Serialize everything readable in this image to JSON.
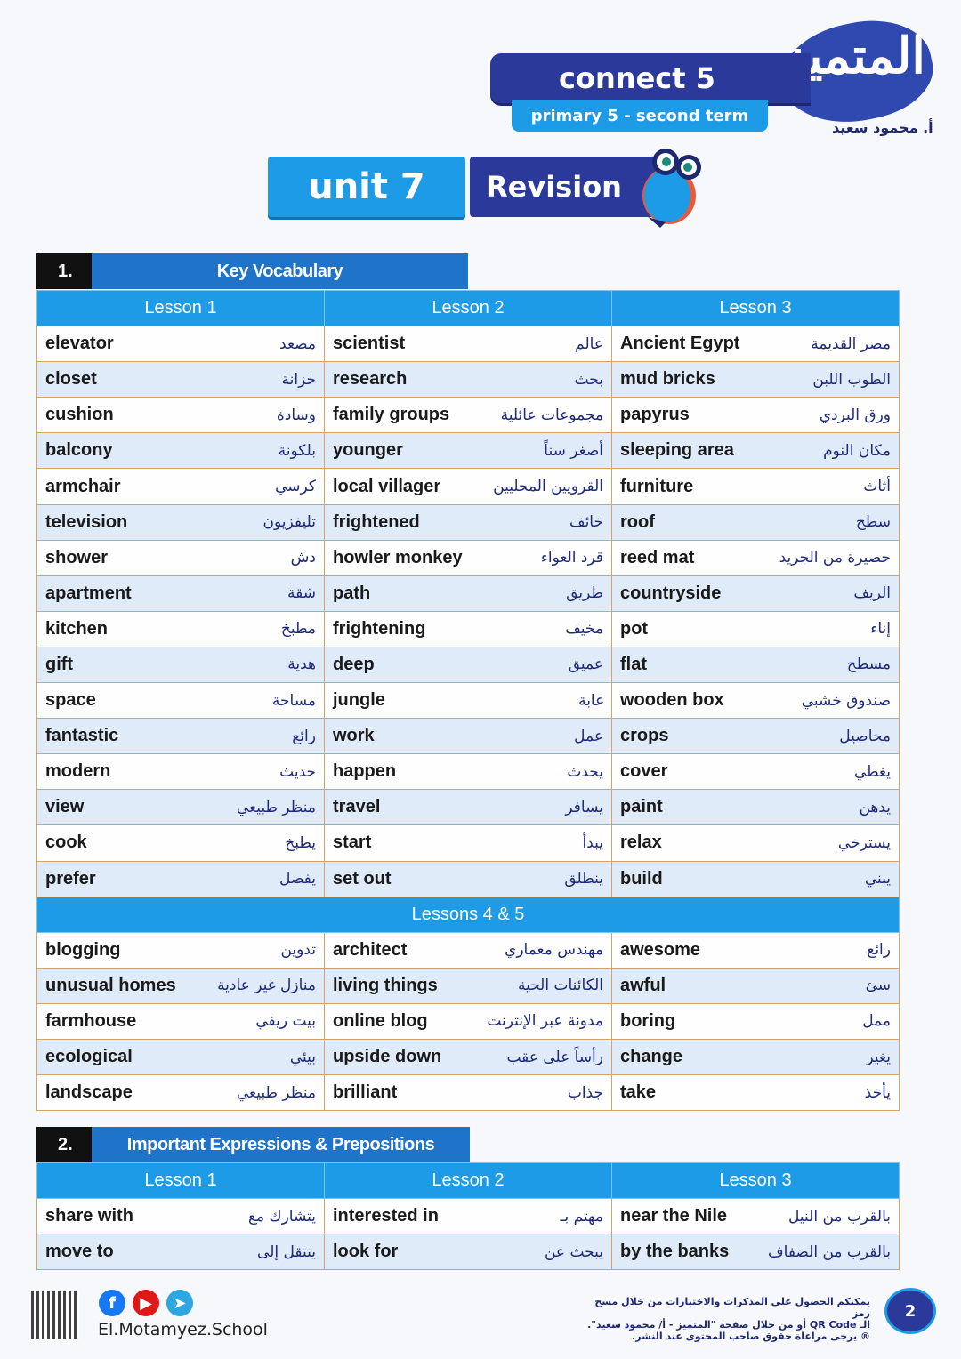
{
  "header": {
    "book": "connect 5",
    "level": "primary 5 - second term",
    "logo_text": "المتميز",
    "author": "أ. محمود سعيد",
    "unit": "unit 7",
    "title": "Revision"
  },
  "colors": {
    "navy": "#2b3a9a",
    "light_blue": "#1e9be6",
    "section_blue": "#1f73c9",
    "border": "#d4a466"
  },
  "section1": {
    "number": "1.",
    "title": "Key Vocabulary",
    "lessons": [
      "Lesson 1",
      "Lesson 2",
      "Lesson 3"
    ],
    "rows": [
      [
        [
          "elevator",
          "مصعد"
        ],
        [
          "scientist",
          "عالم"
        ],
        [
          "Ancient Egypt",
          "مصر القديمة"
        ]
      ],
      [
        [
          "closet",
          "خزانة"
        ],
        [
          "research",
          "بحث"
        ],
        [
          "mud bricks",
          "الطوب اللبن"
        ]
      ],
      [
        [
          "cushion",
          "وسادة"
        ],
        [
          "family groups",
          "مجموعات عائلية"
        ],
        [
          "papyrus",
          "ورق البردي"
        ]
      ],
      [
        [
          "balcony",
          "بلكونة"
        ],
        [
          "younger",
          "أصغر سناً"
        ],
        [
          "sleeping area",
          "مكان النوم"
        ]
      ],
      [
        [
          "armchair",
          "كرسي"
        ],
        [
          "local villager",
          "القرويين المحليين"
        ],
        [
          "furniture",
          "أثاث"
        ]
      ],
      [
        [
          "television",
          "تليفزيون"
        ],
        [
          "frightened",
          "خائف"
        ],
        [
          "roof",
          "سطح"
        ]
      ],
      [
        [
          "shower",
          "دش"
        ],
        [
          "howler monkey",
          "قرد العواء"
        ],
        [
          "reed mat",
          "حصيرة من الجريد"
        ]
      ],
      [
        [
          "apartment",
          "شقة"
        ],
        [
          "path",
          "طريق"
        ],
        [
          "countryside",
          "الريف"
        ]
      ],
      [
        [
          "kitchen",
          "مطبخ"
        ],
        [
          "frightening",
          "مخيف"
        ],
        [
          "pot",
          "إناء"
        ]
      ],
      [
        [
          "gift",
          "هدية"
        ],
        [
          "deep",
          "عميق"
        ],
        [
          "flat",
          "مسطح"
        ]
      ],
      [
        [
          "space",
          "مساحة"
        ],
        [
          "jungle",
          "غابة"
        ],
        [
          "wooden box",
          "صندوق خشبي"
        ]
      ],
      [
        [
          "fantastic",
          "رائع"
        ],
        [
          "work",
          "عمل"
        ],
        [
          "crops",
          "محاصيل"
        ]
      ],
      [
        [
          "modern",
          "حديث"
        ],
        [
          "happen",
          "يحدث"
        ],
        [
          "cover",
          "يغطي"
        ]
      ],
      [
        [
          "view",
          "منظر طبيعي"
        ],
        [
          "travel",
          "يسافر"
        ],
        [
          "paint",
          "يدهن"
        ]
      ],
      [
        [
          "cook",
          "يطبخ"
        ],
        [
          "start",
          "يبدأ"
        ],
        [
          "relax",
          "يسترخي"
        ]
      ],
      [
        [
          "prefer",
          "يفضل"
        ],
        [
          "set out",
          "ينطلق"
        ],
        [
          "build",
          "يبني"
        ]
      ]
    ],
    "lessons45": "Lessons 4 & 5",
    "rows45": [
      [
        [
          "blogging",
          "تدوين"
        ],
        [
          "architect",
          "مهندس معماري"
        ],
        [
          "awesome",
          "رائع"
        ]
      ],
      [
        [
          "unusual homes",
          "منازل غير عادية"
        ],
        [
          "living things",
          "الكائنات الحية"
        ],
        [
          "awful",
          "سئ"
        ]
      ],
      [
        [
          "farmhouse",
          "بيت ريفي"
        ],
        [
          "online blog",
          "مدونة عبر الإنترنت"
        ],
        [
          "boring",
          "ممل"
        ]
      ],
      [
        [
          "ecological",
          "بيئي"
        ],
        [
          "upside down",
          "رأساً على عقب"
        ],
        [
          "change",
          "يغير"
        ]
      ],
      [
        [
          "landscape",
          "منظر طبيعي"
        ],
        [
          "brilliant",
          "جذاب"
        ],
        [
          "take",
          "يأخذ"
        ]
      ]
    ]
  },
  "section2": {
    "number": "2.",
    "title": "Important Expressions & Prepositions",
    "lessons": [
      "Lesson 1",
      "Lesson 2",
      "Lesson 3"
    ],
    "rows": [
      [
        [
          "share with",
          "يتشارك مع"
        ],
        [
          "interested in",
          "مهتم بـ"
        ],
        [
          "near the Nile",
          "بالقرب من النيل"
        ]
      ],
      [
        [
          "move to",
          "ينتقل إلى"
        ],
        [
          "look for",
          "يبحث عن"
        ],
        [
          "by the banks",
          "بالقرب من الضفاف"
        ]
      ]
    ]
  },
  "footer": {
    "notice_lines": [
      "يمكنكم الحصول على المذكرات والاختبارات من خلال مسح رمز",
      "الـ QR Code أو من خلال صفحة \"المتميز - أ/ محمود سعيد\".",
      "® يرجى مراعاة حقوق صاحب المحتوى عند النشر."
    ],
    "handle": "El.Motamyez.School",
    "page_number": "2",
    "social": [
      {
        "icon": "facebook-icon",
        "glyph": "f",
        "color": "#1877f2"
      },
      {
        "icon": "youtube-icon",
        "glyph": "▶",
        "color": "#e01818"
      },
      {
        "icon": "telegram-icon",
        "glyph": "➤",
        "color": "#2ea6e0"
      }
    ]
  }
}
